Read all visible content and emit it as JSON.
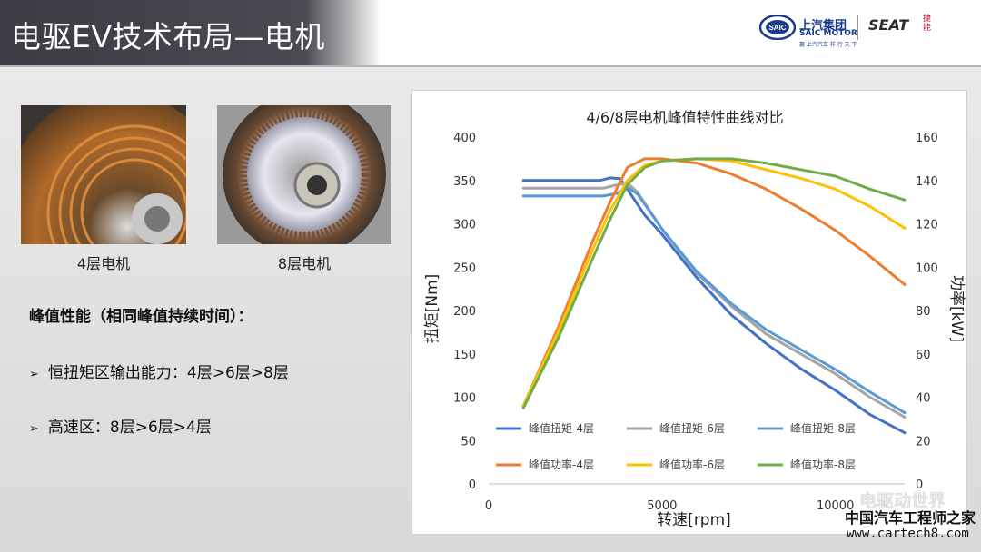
{
  "header": {
    "title": "电驱EV技术布局—电机",
    "saic_cn": "上汽集团",
    "saic_en": "SAIC MOTOR",
    "saic_slogan": "赢 上汽汽车  样 行 天 下",
    "saic_badge": "SAIC",
    "seat_text": "SEAT",
    "seat_cn": "捷能"
  },
  "motors": [
    {
      "caption": "4层电机"
    },
    {
      "caption": "8层电机"
    }
  ],
  "text": {
    "section_title": "峰值性能（相同峰值持续时间）：",
    "bullet1": "恒扭矩区输出能力：4层>6层>8层",
    "bullet2": "高速区：8层>6层>4层"
  },
  "watermark": {
    "wechat": "电驱动世界",
    "cn": "中国汽车工程师之家",
    "url": "www.cartech8.com"
  },
  "colors": {
    "torque_4": "#4472c4",
    "torque_6": "#a5a5a5",
    "torque_8": "#5b9bd5",
    "power_4": "#ed7d31",
    "power_6": "#ffc000",
    "power_8": "#70ad47"
  },
  "chart_data": {
    "type": "line",
    "title": "4/6/8层电机峰值特性曲线对比",
    "xlabel": "转速[rpm]",
    "ylabel": "扭矩[Nm]",
    "y2label": "功率[kW]",
    "xlim": [
      0,
      12000
    ],
    "ylim": [
      0,
      400
    ],
    "y2lim": [
      0,
      160
    ],
    "xticks": [
      0,
      5000,
      10000
    ],
    "yticks": [
      0,
      50,
      100,
      150,
      200,
      250,
      300,
      350,
      400
    ],
    "y2ticks": [
      0,
      20,
      40,
      60,
      80,
      100,
      120,
      140,
      160
    ],
    "grid": false,
    "legend": "inside, lower area, 2 rows × 3 columns",
    "series": [
      {
        "name": "峰值扭矩-4层",
        "axis": "left",
        "color": "#4472c4",
        "x": [
          1000,
          3200,
          3500,
          3800,
          4000,
          4500,
          5000,
          6000,
          7000,
          8000,
          9000,
          10000,
          11000,
          12000
        ],
        "y": [
          350,
          350,
          353,
          352,
          340,
          310,
          288,
          238,
          195,
          162,
          133,
          108,
          80,
          59
        ]
      },
      {
        "name": "峰值扭矩-6层",
        "axis": "left",
        "color": "#a5a5a5",
        "x": [
          1000,
          3300,
          3600,
          4000,
          4300,
          5000,
          6000,
          7000,
          8000,
          9000,
          10000,
          11000,
          12000
        ],
        "y": [
          341,
          341,
          344,
          347,
          336,
          294,
          243,
          205,
          173,
          150,
          127,
          100,
          77
        ]
      },
      {
        "name": "峰值扭矩-8层",
        "axis": "left",
        "color": "#5b9bd5",
        "x": [
          1000,
          3300,
          3700,
          4000,
          4300,
          5000,
          6000,
          7000,
          8000,
          9000,
          10000,
          11000,
          12000
        ],
        "y": [
          332,
          332,
          335,
          342,
          334,
          294,
          245,
          208,
          178,
          155,
          132,
          106,
          82
        ]
      },
      {
        "name": "峰值功率-4层",
        "axis": "right",
        "color": "#ed7d31",
        "x": [
          1000,
          2000,
          3000,
          3500,
          4000,
          4500,
          5000,
          6000,
          7000,
          8000,
          9000,
          10000,
          11000,
          12000
        ],
        "y": [
          36,
          72,
          112,
          130,
          146,
          150,
          150,
          148,
          143,
          136,
          127,
          117,
          105,
          92
        ]
      },
      {
        "name": "峰值功率-6层",
        "axis": "right",
        "color": "#ffc000",
        "x": [
          1000,
          2000,
          3000,
          3500,
          4000,
          4500,
          5000,
          6000,
          7000,
          8000,
          9000,
          10000,
          11000,
          12000
        ],
        "y": [
          36,
          70,
          108,
          126,
          140,
          147,
          149,
          150,
          149,
          145,
          141,
          136,
          128,
          118
        ]
      },
      {
        "name": "峰值功率-8层",
        "axis": "right",
        "color": "#70ad47",
        "x": [
          1000,
          2000,
          3000,
          3500,
          4000,
          4500,
          5000,
          6000,
          7000,
          8000,
          9000,
          10000,
          11000,
          12000
        ],
        "y": [
          35,
          67,
          104,
          122,
          138,
          146,
          149,
          150,
          150,
          148,
          145,
          142,
          136,
          131
        ]
      }
    ]
  }
}
